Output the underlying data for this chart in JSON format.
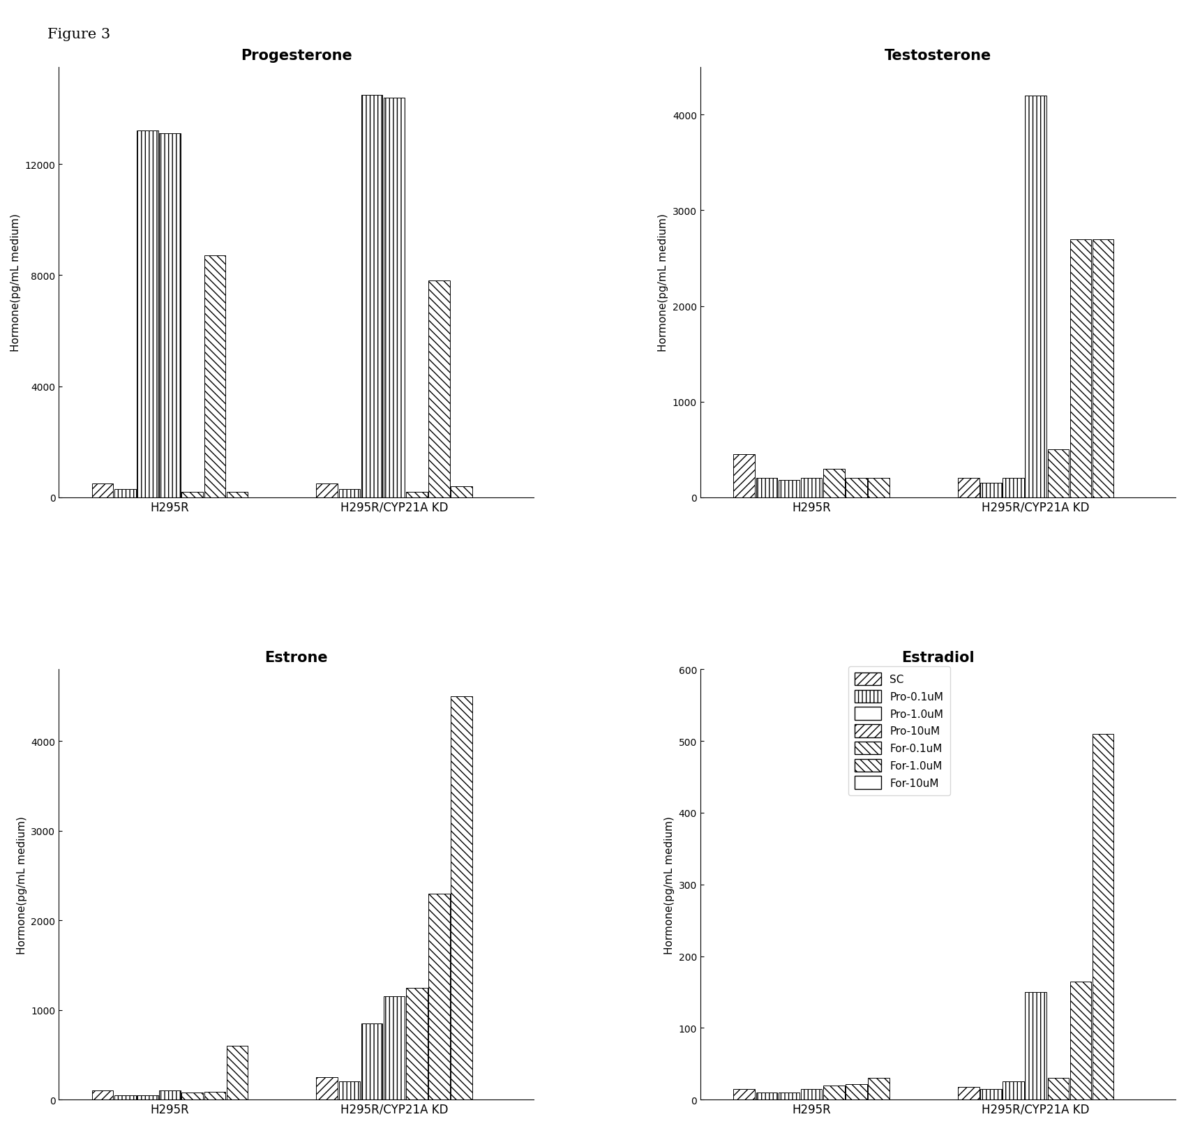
{
  "figure_label": "Figure 3",
  "subplots": [
    {
      "title": "Progesterone",
      "ylabel": "Hormone(pg/mL medium)",
      "ylim": [
        0,
        15500
      ],
      "yticks": [
        0,
        4000,
        8000,
        12000
      ],
      "groups": [
        "H295R",
        "H295R/CYP21A KD"
      ],
      "group_values": [
        [
          500,
          300,
          13200,
          13100,
          200,
          8700,
          200
        ],
        [
          500,
          300,
          14500,
          14400,
          200,
          7800,
          400
        ]
      ]
    },
    {
      "title": "Testosterone",
      "ylabel": "Hormone(pg/mL medium)",
      "ylim": [
        0,
        4500
      ],
      "yticks": [
        0,
        1000,
        2000,
        3000,
        4000
      ],
      "groups": [
        "H295R",
        "H295R/CYP21A KD"
      ],
      "group_values": [
        [
          450,
          200,
          180,
          200,
          300,
          200,
          200
        ],
        [
          200,
          150,
          200,
          4200,
          500,
          2700,
          2700
        ]
      ]
    },
    {
      "title": "Estrone",
      "ylabel": "Hormone(pg/mL medium)",
      "ylim": [
        0,
        4800
      ],
      "yticks": [
        0,
        1000,
        2000,
        3000,
        4000
      ],
      "groups": [
        "H295R",
        "H295R/CYP21A KD"
      ],
      "group_values": [
        [
          100,
          50,
          50,
          100,
          80,
          90,
          600
        ],
        [
          250,
          200,
          850,
          1150,
          1250,
          2300,
          4500
        ]
      ]
    },
    {
      "title": "Estradiol",
      "ylabel": "Hormone(pg/mL medium)",
      "ylim": [
        0,
        600
      ],
      "yticks": [
        0,
        100,
        200,
        300,
        400,
        500,
        600
      ],
      "groups": [
        "H295R",
        "H295R/CYP21A KD"
      ],
      "group_values": [
        [
          15,
          10,
          10,
          15,
          20,
          22,
          30
        ],
        [
          18,
          15,
          25,
          150,
          30,
          165,
          510
        ]
      ]
    }
  ],
  "legend_labels": [
    "SC",
    "Pro-0.1uM",
    "Pro-1.0uM",
    "Pro-10uM",
    "For-0.1uM",
    "For-1.0uM",
    "For-10uM"
  ],
  "background_color": "#ffffff"
}
